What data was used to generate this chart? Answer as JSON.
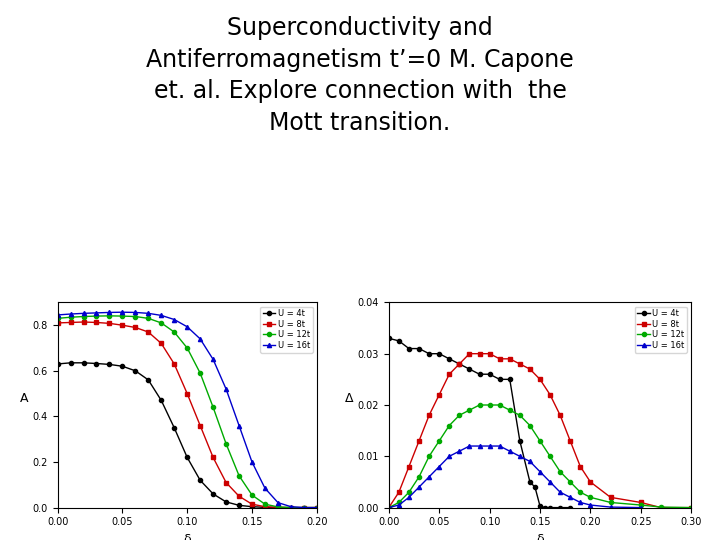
{
  "title": "Superconductivity and\nAntiferromagnetism t’=0 M. Capone\net. al. Explore connection with  the\nMott transition.",
  "title_fontsize": 17,
  "title_fontweight": "normal",
  "bg_color": "#ffffff",
  "plot1": {
    "ylabel": "A",
    "xlabel": "δ",
    "xlim": [
      0,
      0.2
    ],
    "ylim": [
      0,
      0.9
    ],
    "yticks": [
      0,
      0.2,
      0.4,
      0.6,
      0.8
    ],
    "xticks": [
      0,
      0.05,
      0.1,
      0.15,
      0.2
    ],
    "series": [
      {
        "label": "U = 4t",
        "color": "#000000",
        "marker": "o",
        "x": [
          0.0,
          0.01,
          0.02,
          0.03,
          0.04,
          0.05,
          0.06,
          0.07,
          0.08,
          0.09,
          0.1,
          0.11,
          0.12,
          0.13,
          0.14,
          0.15,
          0.16,
          0.17,
          0.18,
          0.19,
          0.2
        ],
        "y": [
          0.63,
          0.635,
          0.635,
          0.632,
          0.628,
          0.62,
          0.6,
          0.56,
          0.47,
          0.35,
          0.22,
          0.12,
          0.06,
          0.025,
          0.01,
          0.004,
          0.001,
          0.0,
          0.0,
          0.0,
          0.0
        ]
      },
      {
        "label": "U = 8t",
        "color": "#cc0000",
        "marker": "s",
        "x": [
          0.0,
          0.01,
          0.02,
          0.03,
          0.04,
          0.05,
          0.06,
          0.07,
          0.08,
          0.09,
          0.1,
          0.11,
          0.12,
          0.13,
          0.14,
          0.15,
          0.16,
          0.17,
          0.18,
          0.19,
          0.2
        ],
        "y": [
          0.81,
          0.812,
          0.814,
          0.812,
          0.808,
          0.8,
          0.79,
          0.77,
          0.72,
          0.63,
          0.5,
          0.36,
          0.22,
          0.11,
          0.05,
          0.015,
          0.004,
          0.001,
          0.0,
          0.0,
          0.0
        ]
      },
      {
        "label": "U = 12t",
        "color": "#00aa00",
        "marker": "o",
        "x": [
          0.0,
          0.01,
          0.02,
          0.03,
          0.04,
          0.05,
          0.06,
          0.07,
          0.08,
          0.09,
          0.1,
          0.11,
          0.12,
          0.13,
          0.14,
          0.15,
          0.16,
          0.17,
          0.18,
          0.19,
          0.2
        ],
        "y": [
          0.83,
          0.835,
          0.838,
          0.84,
          0.841,
          0.84,
          0.838,
          0.83,
          0.81,
          0.77,
          0.7,
          0.59,
          0.44,
          0.28,
          0.14,
          0.055,
          0.015,
          0.003,
          0.0,
          0.0,
          0.0
        ]
      },
      {
        "label": "U = 16t",
        "color": "#0000cc",
        "marker": "^",
        "x": [
          0.0,
          0.01,
          0.02,
          0.03,
          0.04,
          0.05,
          0.06,
          0.07,
          0.08,
          0.09,
          0.1,
          0.11,
          0.12,
          0.13,
          0.14,
          0.15,
          0.16,
          0.17,
          0.18,
          0.19,
          0.2
        ],
        "y": [
          0.845,
          0.849,
          0.852,
          0.854,
          0.856,
          0.857,
          0.856,
          0.852,
          0.843,
          0.825,
          0.793,
          0.74,
          0.65,
          0.52,
          0.36,
          0.2,
          0.085,
          0.022,
          0.004,
          0.0,
          0.0
        ]
      }
    ]
  },
  "plot2": {
    "ylabel": "Δ",
    "xlabel": "δ",
    "xlim": [
      0,
      0.3
    ],
    "ylim": [
      0,
      0.04
    ],
    "yticks": [
      0,
      0.01,
      0.02,
      0.03,
      0.04
    ],
    "xticks": [
      0,
      0.05,
      0.1,
      0.15,
      0.2,
      0.25,
      0.3
    ],
    "series": [
      {
        "label": "U = 4t",
        "color": "#000000",
        "marker": "o",
        "x": [
          0.0,
          0.01,
          0.02,
          0.03,
          0.04,
          0.05,
          0.06,
          0.07,
          0.08,
          0.09,
          0.1,
          0.11,
          0.12,
          0.13,
          0.14,
          0.145,
          0.15,
          0.155,
          0.16,
          0.17,
          0.18
        ],
        "y": [
          0.033,
          0.0325,
          0.031,
          0.031,
          0.03,
          0.03,
          0.029,
          0.028,
          0.027,
          0.026,
          0.026,
          0.025,
          0.025,
          0.013,
          0.005,
          0.004,
          0.0003,
          0.0,
          0.0,
          0.0,
          0.0
        ]
      },
      {
        "label": "U = 8t",
        "color": "#cc0000",
        "marker": "s",
        "x": [
          0.0,
          0.01,
          0.02,
          0.03,
          0.04,
          0.05,
          0.06,
          0.07,
          0.08,
          0.09,
          0.1,
          0.11,
          0.12,
          0.13,
          0.14,
          0.15,
          0.16,
          0.17,
          0.18,
          0.19,
          0.2,
          0.22,
          0.25,
          0.27,
          0.3
        ],
        "y": [
          0.0,
          0.003,
          0.008,
          0.013,
          0.018,
          0.022,
          0.026,
          0.028,
          0.03,
          0.03,
          0.03,
          0.029,
          0.029,
          0.028,
          0.027,
          0.025,
          0.022,
          0.018,
          0.013,
          0.008,
          0.005,
          0.002,
          0.001,
          0.0,
          0.0
        ]
      },
      {
        "label": "U = 12t",
        "color": "#00aa00",
        "marker": "o",
        "x": [
          0.0,
          0.01,
          0.02,
          0.03,
          0.04,
          0.05,
          0.06,
          0.07,
          0.08,
          0.09,
          0.1,
          0.11,
          0.12,
          0.13,
          0.14,
          0.15,
          0.16,
          0.17,
          0.18,
          0.19,
          0.2,
          0.22,
          0.25,
          0.27,
          0.3
        ],
        "y": [
          0.0,
          0.001,
          0.003,
          0.006,
          0.01,
          0.013,
          0.016,
          0.018,
          0.019,
          0.02,
          0.02,
          0.02,
          0.019,
          0.018,
          0.016,
          0.013,
          0.01,
          0.007,
          0.005,
          0.003,
          0.002,
          0.001,
          0.0005,
          0.0001,
          0.0
        ]
      },
      {
        "label": "U = 16t",
        "color": "#0000cc",
        "marker": "^",
        "x": [
          0.0,
          0.01,
          0.02,
          0.03,
          0.04,
          0.05,
          0.06,
          0.07,
          0.08,
          0.09,
          0.1,
          0.11,
          0.12,
          0.13,
          0.14,
          0.15,
          0.16,
          0.17,
          0.18,
          0.19,
          0.2,
          0.22,
          0.25
        ],
        "y": [
          0.0,
          0.0005,
          0.002,
          0.004,
          0.006,
          0.008,
          0.01,
          0.011,
          0.012,
          0.012,
          0.012,
          0.012,
          0.011,
          0.01,
          0.009,
          0.007,
          0.005,
          0.003,
          0.002,
          0.001,
          0.0005,
          0.0001,
          0.0
        ]
      }
    ]
  }
}
